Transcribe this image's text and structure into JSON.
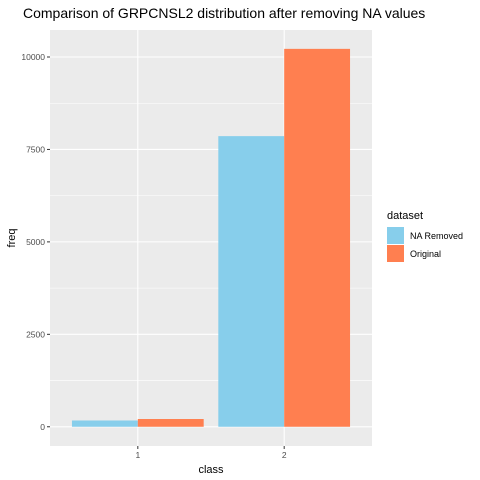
{
  "chart_data": {
    "type": "bar",
    "title": "Comparison of GRPCNSL2 distribution after removing NA values",
    "xlabel": "class",
    "ylabel": "freq",
    "categories": [
      "1",
      "2"
    ],
    "series": [
      {
        "name": "NA Removed",
        "values": [
          170,
          7860
        ],
        "color": "#87CEEB"
      },
      {
        "name": "Original",
        "values": [
          210,
          10220
        ],
        "color": "#FF7F50"
      }
    ],
    "ylim": [
      -520,
      10730
    ],
    "yticks": [
      0,
      2500,
      5000,
      7500,
      10000
    ],
    "ytick_labels": [
      "0",
      "2500",
      "5000",
      "7500",
      "10000"
    ],
    "grid": true,
    "panel_background": "#EBEBEB",
    "legend": {
      "title": "dataset",
      "position": "right"
    }
  }
}
